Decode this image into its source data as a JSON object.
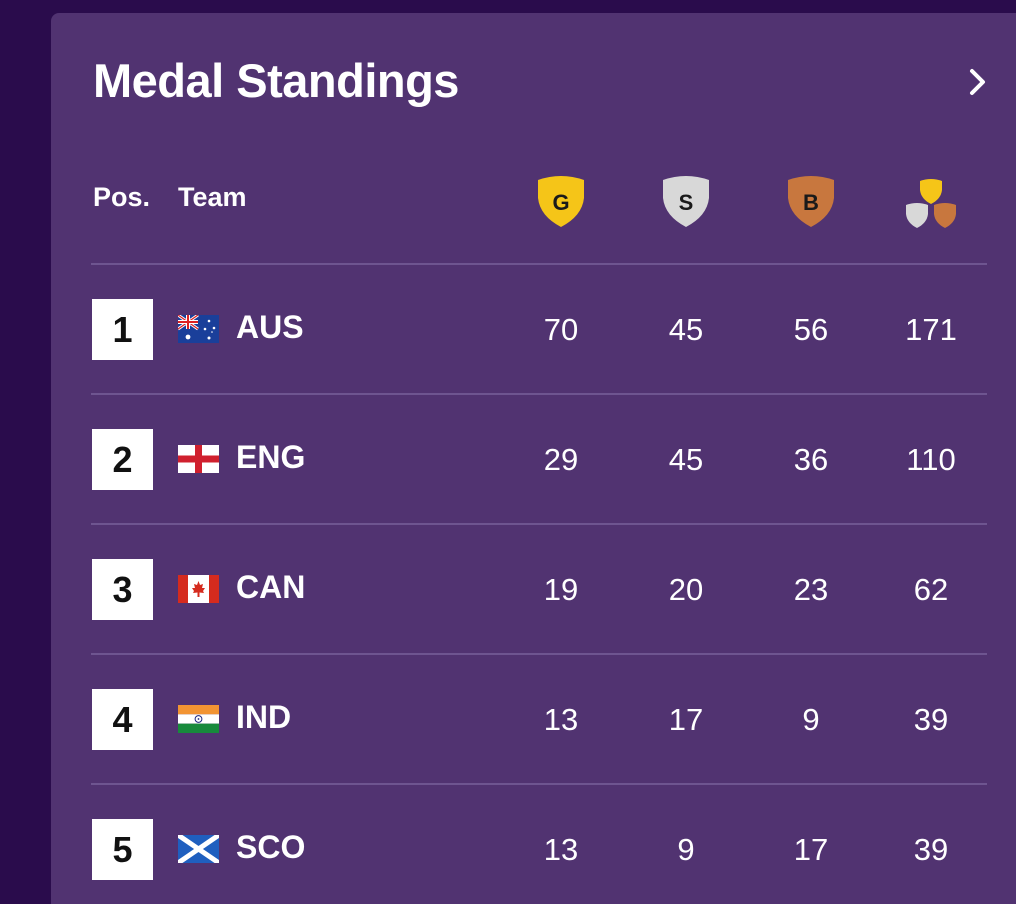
{
  "title": "Medal Standings",
  "headers": {
    "pos": "Pos.",
    "team": "Team",
    "gold": "G",
    "silver": "S",
    "bronze": "B"
  },
  "icons": {
    "gold": "gold-medal-icon",
    "silver": "silver-medal-icon",
    "bronze": "bronze-medal-icon",
    "total": "total-medals-icon",
    "more": "chevron-right-icon"
  },
  "colors": {
    "background": "#2a0c4c",
    "panel": "#513371",
    "gold": "#f5c518",
    "silver": "#d8d8d8",
    "bronze": "#c8773e"
  },
  "rows": [
    {
      "pos": "1",
      "team": "AUS",
      "flag": "australia-flag-icon",
      "gold": "70",
      "silver": "45",
      "bronze": "56",
      "total": "171"
    },
    {
      "pos": "2",
      "team": "ENG",
      "flag": "england-flag-icon",
      "gold": "29",
      "silver": "45",
      "bronze": "36",
      "total": "110"
    },
    {
      "pos": "3",
      "team": "CAN",
      "flag": "canada-flag-icon",
      "gold": "19",
      "silver": "20",
      "bronze": "23",
      "total": "62"
    },
    {
      "pos": "4",
      "team": "IND",
      "flag": "india-flag-icon",
      "gold": "13",
      "silver": "17",
      "bronze": "9",
      "total": "39"
    },
    {
      "pos": "5",
      "team": "SCO",
      "flag": "scotland-flag-icon",
      "gold": "13",
      "silver": "9",
      "bronze": "17",
      "total": "39"
    }
  ]
}
